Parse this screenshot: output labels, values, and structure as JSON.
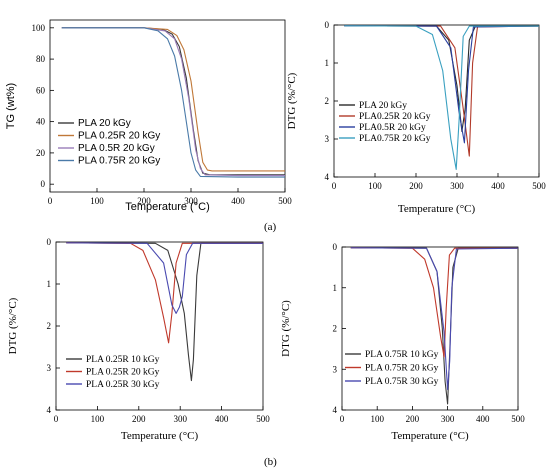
{
  "captions": {
    "a": "(a)",
    "b": "(b)"
  },
  "chart_data": [
    {
      "type": "line",
      "panel": "a-left",
      "title": "",
      "xlabel": "Temperature (°C)",
      "ylabel": "TG (wt%)",
      "xlim": [
        0,
        500
      ],
      "ylim": [
        -5,
        105
      ],
      "xticks": [
        0,
        100,
        200,
        300,
        400,
        500
      ],
      "yticks": [
        0,
        20,
        40,
        60,
        80,
        100
      ],
      "y_inverted": false,
      "legend_position": "bottom-left",
      "colors": [
        "#3b3b3b",
        "#c07838",
        "#9a7cb8",
        "#4a7aa8"
      ],
      "series": [
        {
          "name": "PLA 20 kGy",
          "x": [
            25,
            200,
            240,
            260,
            275,
            290,
            305,
            315,
            325,
            340,
            400,
            500
          ],
          "y": [
            100,
            100,
            99,
            96,
            88,
            68,
            35,
            15,
            7,
            6,
            6,
            6
          ]
        },
        {
          "name": "PLA 0.25R 20 kGy",
          "x": [
            25,
            200,
            250,
            270,
            285,
            300,
            315,
            325,
            335,
            345,
            400,
            500
          ],
          "y": [
            100,
            100,
            99,
            95,
            86,
            66,
            33,
            14,
            9,
            8.5,
            8.5,
            8.5
          ]
        },
        {
          "name": "PLA 0.5R 20 kGy",
          "x": [
            25,
            200,
            245,
            265,
            280,
            295,
            310,
            320,
            330,
            400,
            500
          ],
          "y": [
            100,
            100,
            98,
            93,
            80,
            55,
            22,
            10,
            6,
            5.5,
            5.5
          ]
        },
        {
          "name": "PLA 0.75R 20 kGy",
          "x": [
            25,
            200,
            230,
            250,
            265,
            280,
            290,
            300,
            310,
            320,
            400,
            500
          ],
          "y": [
            100,
            100,
            98,
            93,
            82,
            60,
            40,
            20,
            9,
            5,
            4.5,
            4.5
          ]
        }
      ]
    },
    {
      "type": "line",
      "panel": "a-right",
      "title": "",
      "xlabel": "Temperature (°C)",
      "ylabel": "DTG (%/°C)",
      "xlim": [
        0,
        500
      ],
      "ylim": [
        0,
        4
      ],
      "xticks": [
        0,
        100,
        200,
        300,
        400,
        500
      ],
      "yticks": [
        0,
        1,
        2,
        3,
        4
      ],
      "y_inverted": true,
      "legend_position": "bottom-left",
      "colors": [
        "#2b2b2b",
        "#b23a2a",
        "#2a3fa0",
        "#3aa0c0"
      ],
      "series": [
        {
          "name": "PLA 20 kGy",
          "x": [
            25,
            250,
            280,
            300,
            312,
            320,
            330,
            345,
            500
          ],
          "y": [
            0.02,
            0.03,
            0.4,
            1.6,
            2.8,
            2.2,
            0.4,
            0.03,
            0.03
          ]
        },
        {
          "name": "PLA0.25R 20 kGy",
          "x": [
            25,
            260,
            295,
            315,
            330,
            338,
            350,
            500
          ],
          "y": [
            0.02,
            0.03,
            0.6,
            2.2,
            3.45,
            1.0,
            0.05,
            0.03
          ]
        },
        {
          "name": "PLA0.5R 20 kGy",
          "x": [
            25,
            250,
            285,
            305,
            318,
            328,
            340,
            500
          ],
          "y": [
            0.02,
            0.03,
            0.6,
            2.3,
            3.1,
            1.2,
            0.05,
            0.03
          ]
        },
        {
          "name": "PLA0.75R 20 kGy",
          "x": [
            25,
            200,
            240,
            265,
            285,
            298,
            305,
            315,
            330,
            500
          ],
          "y": [
            0.02,
            0.03,
            0.25,
            1.2,
            3.0,
            3.8,
            2.5,
            0.3,
            0.03,
            0.03
          ]
        }
      ]
    },
    {
      "type": "line",
      "panel": "b-left",
      "title": "",
      "xlabel": "Temperature (°C)",
      "ylabel": "DTG (%/°C)",
      "xlim": [
        0,
        500
      ],
      "ylim": [
        0,
        4
      ],
      "xticks": [
        0,
        100,
        200,
        300,
        400,
        500
      ],
      "yticks": [
        0,
        1,
        2,
        3,
        4
      ],
      "y_inverted": true,
      "legend_position": "bottom-left",
      "colors": [
        "#3a3a3a",
        "#c0392b",
        "#4a4ab0"
      ],
      "series": [
        {
          "name": "PLA 0.25R 10 kGy",
          "x": [
            25,
            240,
            270,
            295,
            310,
            320,
            327,
            332,
            340,
            350,
            500
          ],
          "y": [
            0.02,
            0.03,
            0.2,
            1.0,
            1.7,
            2.7,
            3.3,
            2.8,
            0.8,
            0.03,
            0.03
          ]
        },
        {
          "name": "PLA 0.25R 20 kGy",
          "x": [
            25,
            180,
            210,
            240,
            260,
            272,
            280,
            290,
            305,
            500
          ],
          "y": [
            0.02,
            0.03,
            0.2,
            0.9,
            1.8,
            2.4,
            1.7,
            0.5,
            0.03,
            0.03
          ]
        },
        {
          "name": "PLA 0.25R 30 kGy",
          "x": [
            25,
            220,
            260,
            280,
            290,
            298,
            305,
            315,
            330,
            500
          ],
          "y": [
            0.02,
            0.03,
            0.5,
            1.5,
            1.7,
            1.55,
            1.3,
            0.3,
            0.03,
            0.03
          ]
        }
      ]
    },
    {
      "type": "line",
      "panel": "b-right",
      "title": "",
      "xlabel": "Temperature (°C)",
      "ylabel": "DTG (%/°C)",
      "xlim": [
        0,
        500
      ],
      "ylim": [
        0,
        4
      ],
      "xticks": [
        0,
        100,
        200,
        300,
        400,
        500
      ],
      "yticks": [
        0,
        1,
        2,
        3,
        4
      ],
      "y_inverted": true,
      "legend_position": "bottom-left",
      "colors": [
        "#3a3a3a",
        "#c0392b",
        "#4a4ab0"
      ],
      "series": [
        {
          "name": "PLA 0.75R 10 kGy",
          "x": [
            25,
            240,
            270,
            285,
            293,
            300,
            306,
            315,
            330,
            500
          ],
          "y": [
            0.02,
            0.03,
            0.6,
            2.0,
            3.3,
            3.85,
            2.6,
            0.5,
            0.03,
            0.03
          ]
        },
        {
          "name": "PLA 0.75R 20 kGy",
          "x": [
            25,
            200,
            235,
            260,
            280,
            290,
            296,
            305,
            320,
            500
          ],
          "y": [
            0.02,
            0.03,
            0.3,
            1.0,
            2.2,
            2.7,
            1.5,
            0.2,
            0.03,
            0.03
          ]
        },
        {
          "name": "PLA 0.75R 30 kGy",
          "x": [
            25,
            240,
            270,
            290,
            300,
            306,
            312,
            325,
            500
          ],
          "y": [
            0.02,
            0.03,
            0.6,
            2.1,
            3.5,
            2.8,
            1.0,
            0.05,
            0.03
          ]
        }
      ]
    }
  ]
}
